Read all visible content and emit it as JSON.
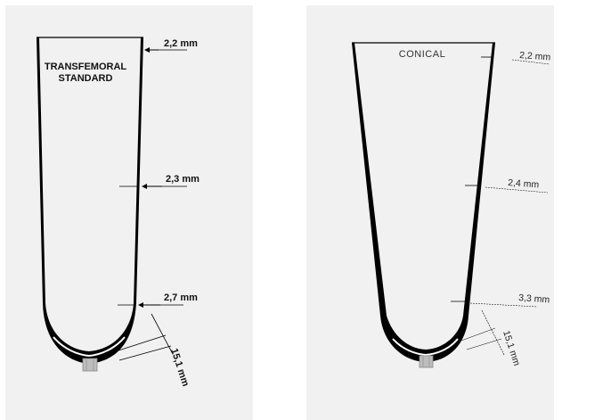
{
  "left": {
    "title_line1": "TRANSFEMORAL",
    "title_line2": "STANDARD",
    "dim_top": "2,2 mm",
    "dim_mid": "2,3 mm",
    "dim_low": "2,7 mm",
    "dim_bottom": "15,1 mm"
  },
  "right": {
    "title": "CONICAL",
    "dim_top": "2,2 mm",
    "dim_mid": "2,4 mm",
    "dim_low": "3,3 mm",
    "dim_bottom": "15,1 mm"
  },
  "colors": {
    "panel_bg": "#f1f1f1",
    "shell_fill": "#ffffff",
    "wall": "#000000",
    "connector": "#bdbdbd"
  }
}
